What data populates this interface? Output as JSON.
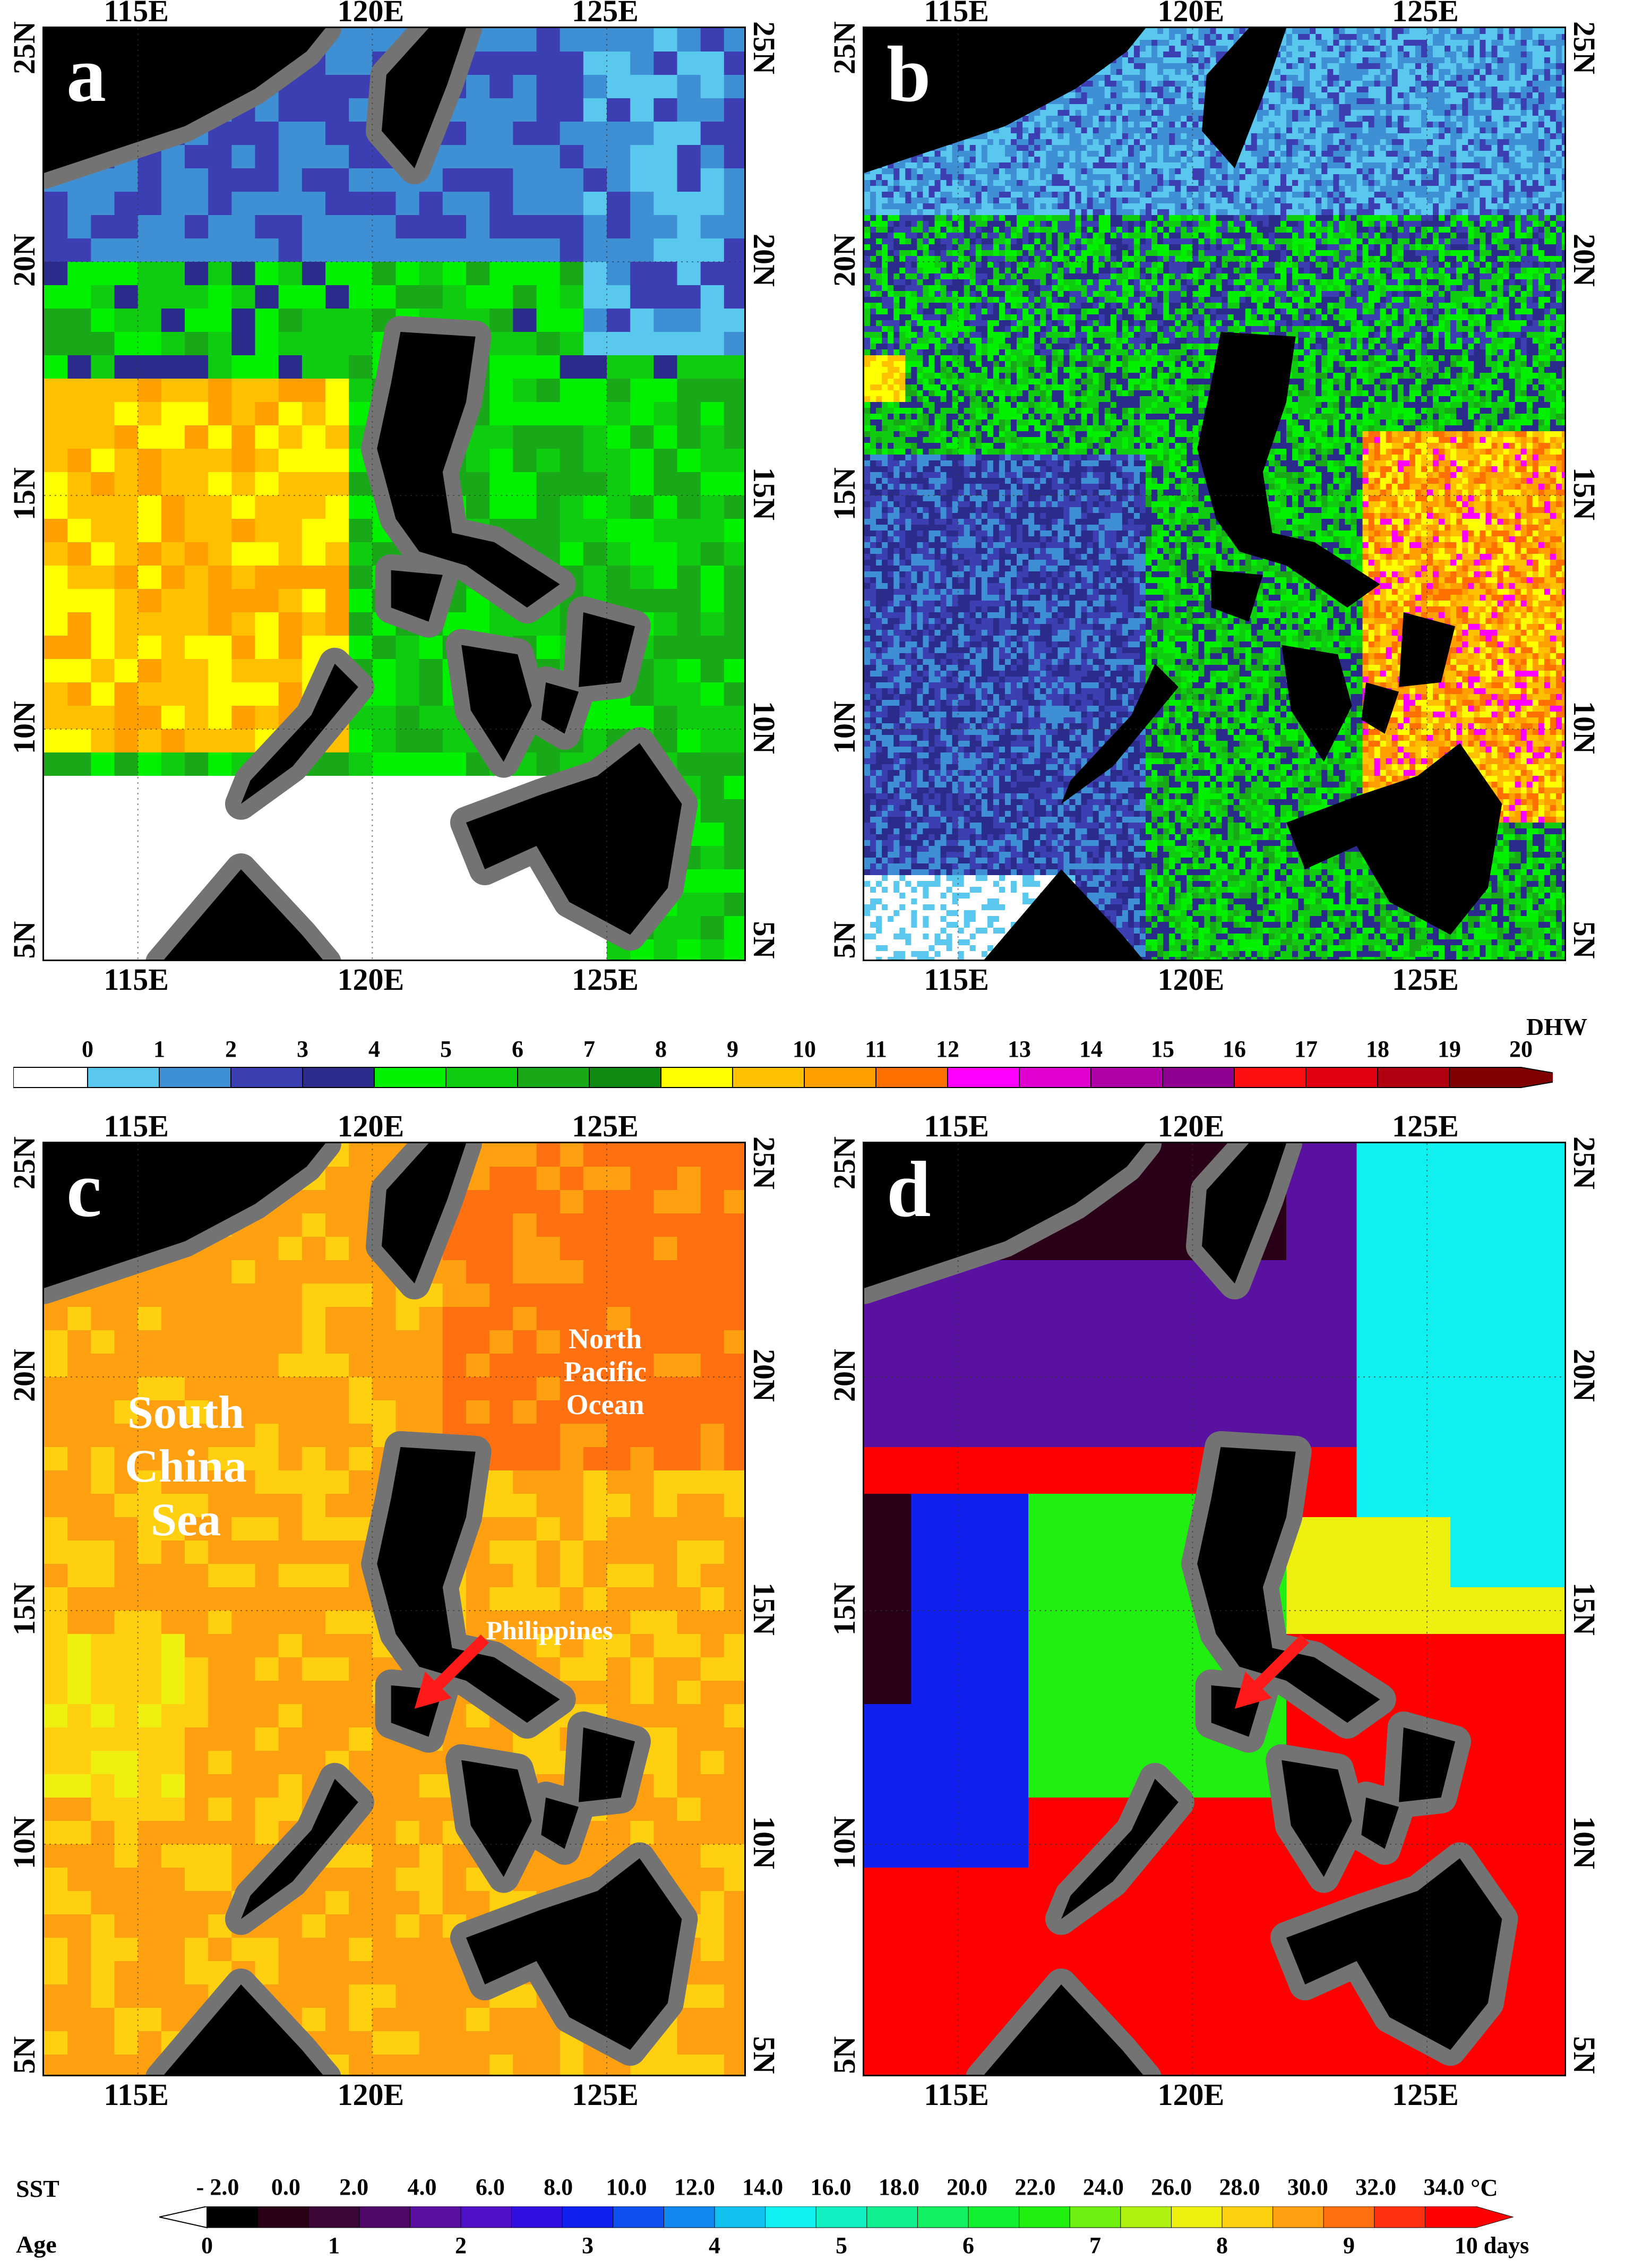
{
  "panels": [
    {
      "letter": "a",
      "kind": "dhw_coarse"
    },
    {
      "letter": "b",
      "kind": "dhw_fine"
    },
    {
      "letter": "c",
      "kind": "sst"
    },
    {
      "letter": "d",
      "kind": "age"
    }
  ],
  "axes": {
    "lon_ticks": [
      "115E",
      "120E",
      "125E"
    ],
    "lat_ticks": [
      "25N",
      "20N",
      "15N",
      "10N",
      "5N"
    ]
  },
  "labels_c": {
    "south_china_sea": "South\nChina\nSea",
    "north_pacific": "North\nPacific\nOcean",
    "philippines": "Philippines"
  },
  "dhw_colorbar": {
    "unit": "DHW",
    "labels": [
      "0",
      "1",
      "2",
      "3",
      "4",
      "5",
      "6",
      "7",
      "8",
      "9",
      "10",
      "11",
      "12",
      "13",
      "14",
      "15",
      "16",
      "17",
      "18",
      "19",
      "20"
    ],
    "colors": [
      "#ffffff",
      "#5ac8ee",
      "#3f8fd4",
      "#3c3fb2",
      "#2b2b8c",
      "#00f000",
      "#10cc10",
      "#18a818",
      "#108a10",
      "#ffff00",
      "#ffc000",
      "#ffa000",
      "#ff7000",
      "#ff00ff",
      "#e000d0",
      "#b000a8",
      "#900090",
      "#ff1010",
      "#e00010",
      "#b00010",
      "#800000"
    ]
  },
  "sst_colorbar": {
    "sst_title": "SST",
    "age_title": "Age",
    "unit": "°C",
    "sst_labels": [
      "- 2.0",
      "0.0",
      "2.0",
      "4.0",
      "6.0",
      "8.0",
      "10.0",
      "12.0",
      "14.0",
      "16.0",
      "18.0",
      "20.0",
      "22.0",
      "24.0",
      "26.0",
      "28.0",
      "30.0",
      "32.0",
      "34.0"
    ],
    "age_labels": [
      "0",
      "1",
      "2",
      "3",
      "4",
      "5",
      "6",
      "7",
      "8",
      "9",
      "10 days"
    ],
    "colors": [
      "#000000",
      "#2a0018",
      "#3d0838",
      "#500868",
      "#5a10a0",
      "#5010c8",
      "#3010e0",
      "#1020f0",
      "#1050f0",
      "#1088f0",
      "#10c0f0",
      "#10f0f0",
      "#10f0c0",
      "#10f090",
      "#10f060",
      "#10f030",
      "#20f010",
      "#70f010",
      "#b0f010",
      "#f0f010",
      "#ffd010",
      "#ffa010",
      "#ff7010",
      "#ff3010",
      "#ff0000"
    ]
  },
  "colors": {
    "land": "#000000",
    "mask": "#737373",
    "arrow": "#ff1a1a"
  }
}
